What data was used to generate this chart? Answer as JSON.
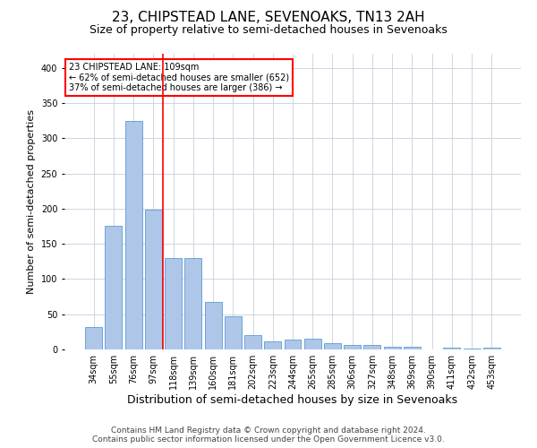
{
  "title1": "23, CHIPSTEAD LANE, SEVENOAKS, TN13 2AH",
  "title2": "Size of property relative to semi-detached houses in Sevenoaks",
  "xlabel": "Distribution of semi-detached houses by size in Sevenoaks",
  "ylabel": "Number of semi-detached properties",
  "categories": [
    "34sqm",
    "55sqm",
    "76sqm",
    "97sqm",
    "118sqm",
    "139sqm",
    "160sqm",
    "181sqm",
    "202sqm",
    "223sqm",
    "244sqm",
    "265sqm",
    "285sqm",
    "306sqm",
    "327sqm",
    "348sqm",
    "369sqm",
    "390sqm",
    "411sqm",
    "432sqm",
    "453sqm"
  ],
  "values": [
    32,
    176,
    325,
    198,
    130,
    130,
    67,
    47,
    20,
    11,
    14,
    15,
    9,
    7,
    6,
    4,
    4,
    0,
    3,
    1,
    3
  ],
  "bar_color": "#aec6e8",
  "bar_edge_color": "#5b9bd5",
  "vline_x": 3.5,
  "annotation_text": "23 CHIPSTEAD LANE: 109sqm\n← 62% of semi-detached houses are smaller (652)\n37% of semi-detached houses are larger (386) →",
  "annotation_box_color": "white",
  "annotation_edge_color": "red",
  "vline_color": "red",
  "grid_color": "#c8d0dc",
  "footer1": "Contains HM Land Registry data © Crown copyright and database right 2024.",
  "footer2": "Contains public sector information licensed under the Open Government Licence v3.0.",
  "ylim": [
    0,
    420
  ],
  "yticks": [
    0,
    50,
    100,
    150,
    200,
    250,
    300,
    350,
    400
  ],
  "title1_fontsize": 11,
  "title2_fontsize": 9,
  "xlabel_fontsize": 9,
  "ylabel_fontsize": 8,
  "tick_fontsize": 7,
  "footer_fontsize": 6.5,
  "annotation_fontsize": 7
}
